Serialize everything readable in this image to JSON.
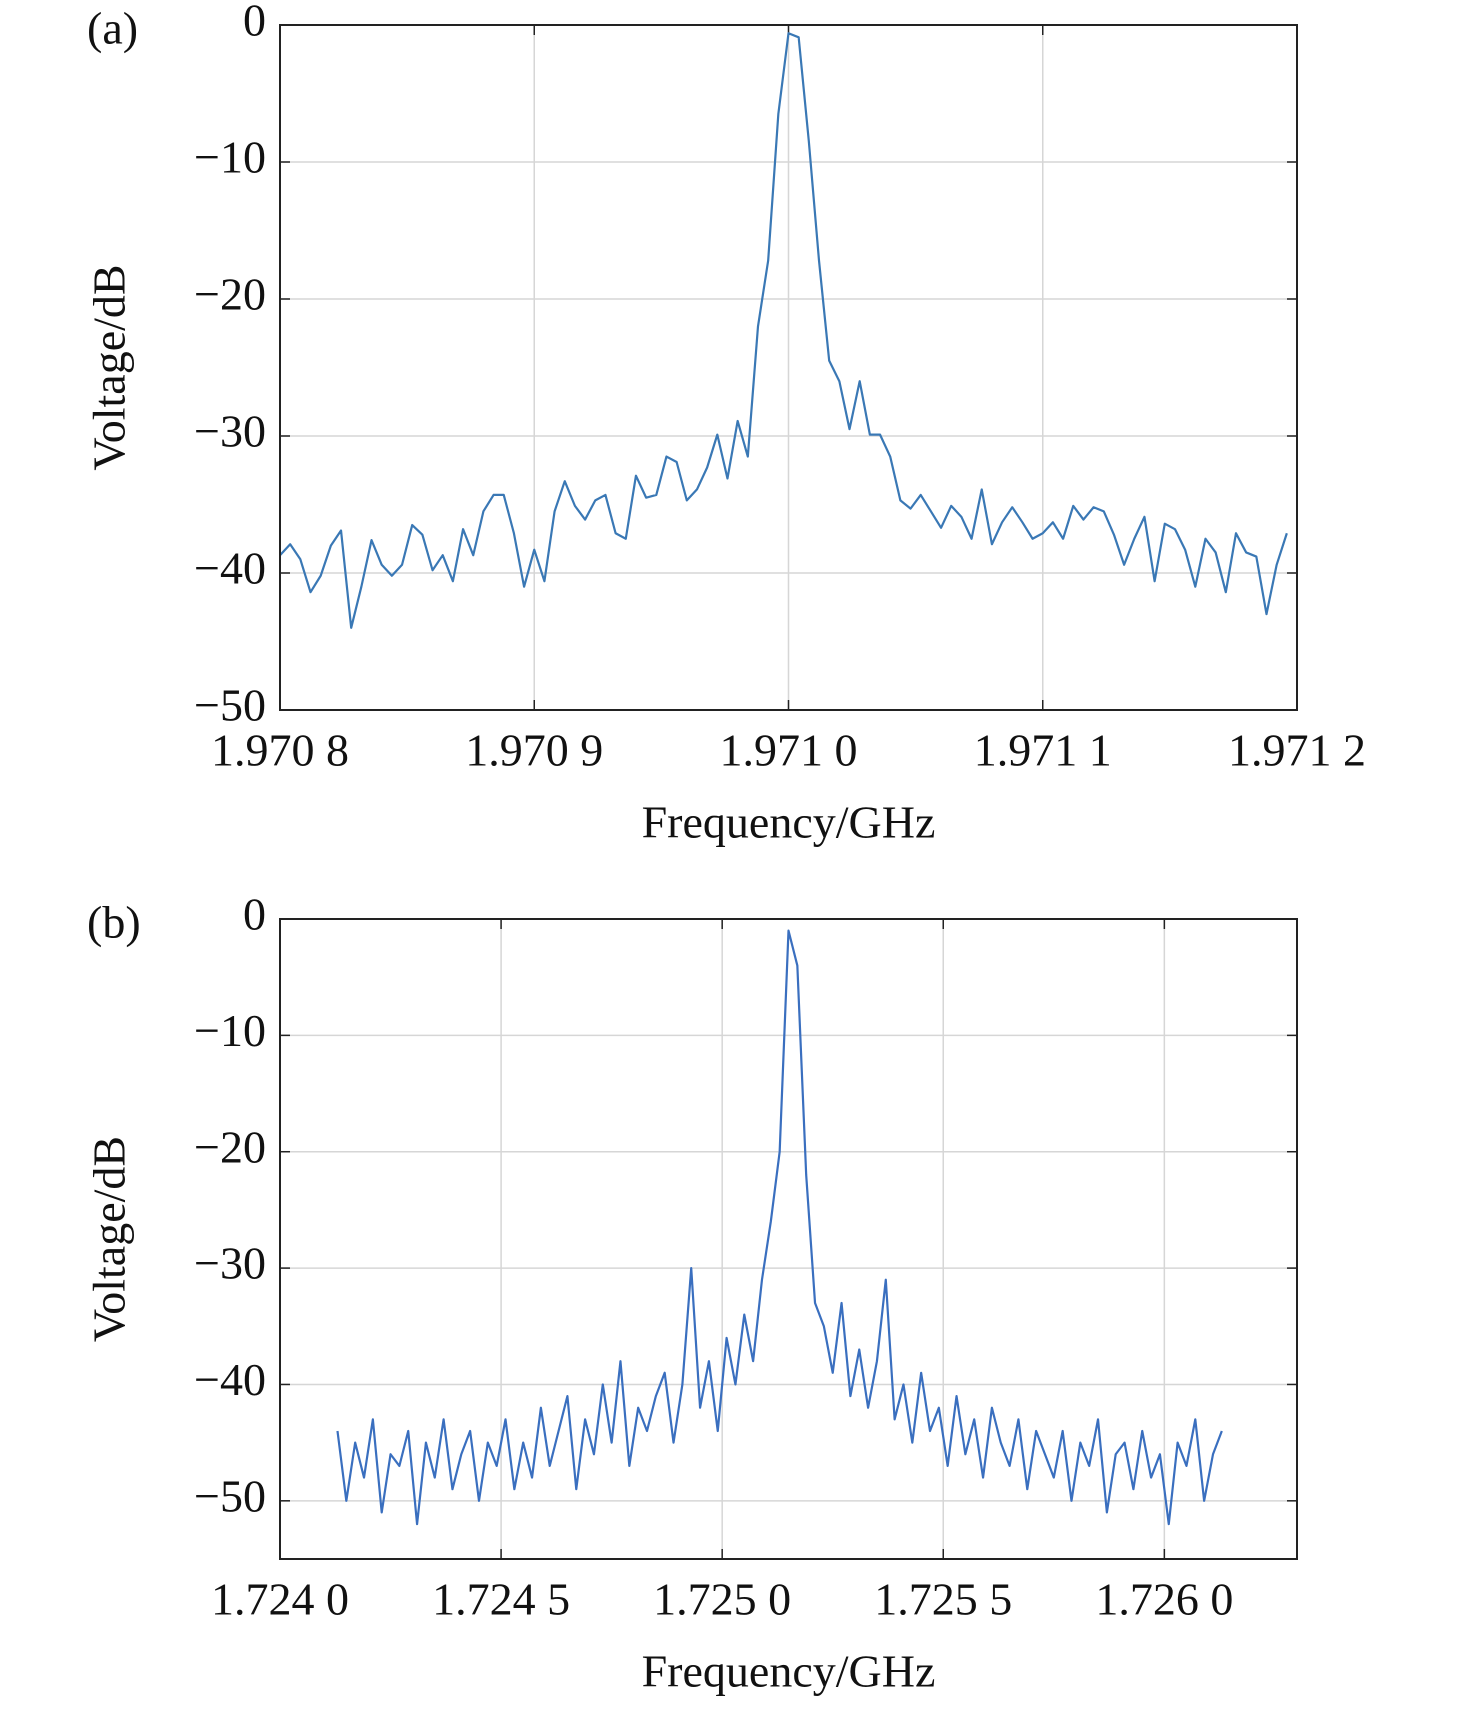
{
  "chart_data": [
    {
      "type": "line",
      "label": "(a)",
      "xlabel": "Frequency/GHz",
      "ylabel": "Voltage/dB",
      "color": "#3a78b5",
      "grid": true,
      "xlim": [
        1.9708,
        1.9712
      ],
      "ylim": [
        -50,
        0
      ],
      "xticks": [
        {
          "value": 1.9708,
          "label": "1.970 8"
        },
        {
          "value": 1.9709,
          "label": "1.970 9"
        },
        {
          "value": 1.971,
          "label": "1.971 0"
        },
        {
          "value": 1.9711,
          "label": "1.971 1"
        },
        {
          "value": 1.9712,
          "label": "1.971 2"
        }
      ],
      "yticks": [
        0,
        {
          "value": -10,
          "label": "−10"
        },
        {
          "value": -20,
          "label": "−20"
        },
        {
          "value": -30,
          "label": "−30"
        },
        {
          "value": -40,
          "label": "−40"
        },
        {
          "value": -50,
          "label": "−50"
        }
      ],
      "x": [
        1.9708,
        1.970804,
        1.970808,
        1.970812,
        1.970816,
        1.97082,
        1.970824,
        1.970828,
        1.970832,
        1.970836,
        1.97084,
        1.970844,
        1.970848,
        1.970852,
        1.970856,
        1.97086,
        1.970864,
        1.970868,
        1.970872,
        1.970876,
        1.97088,
        1.970884,
        1.970888,
        1.970892,
        1.970896,
        1.9709,
        1.970904,
        1.970908,
        1.970912,
        1.970916,
        1.97092,
        1.970924,
        1.970928,
        1.970932,
        1.970936,
        1.97094,
        1.970944,
        1.970948,
        1.970952,
        1.970956,
        1.97096,
        1.970964,
        1.970968,
        1.970972,
        1.970976,
        1.97098,
        1.970984,
        1.970988,
        1.970992,
        1.970996,
        1.971,
        1.971004,
        1.971008,
        1.971012,
        1.971016,
        1.97102,
        1.971024,
        1.971028,
        1.971032,
        1.971036,
        1.97104,
        1.971044,
        1.971048,
        1.971052,
        1.971056,
        1.97106,
        1.971064,
        1.971068,
        1.971072,
        1.971076,
        1.97108,
        1.971084,
        1.971088,
        1.971092,
        1.971096,
        1.9711,
        1.971104,
        1.971108,
        1.971112,
        1.971116,
        1.97112,
        1.971124,
        1.971128,
        1.971132,
        1.971136,
        1.97114,
        1.971144,
        1.971148,
        1.971152,
        1.971156,
        1.97116,
        1.971164,
        1.971168,
        1.971172,
        1.971176,
        1.97118,
        1.971184,
        1.971188,
        1.971192,
        1.971196
      ],
      "values": [
        -38.7,
        -37.9,
        -39.0,
        -41.4,
        -40.2,
        -38.0,
        -36.9,
        -44.0,
        -41.0,
        -37.6,
        -39.4,
        -40.2,
        -39.4,
        -36.5,
        -37.2,
        -39.8,
        -38.7,
        -40.6,
        -36.8,
        -38.7,
        -35.5,
        -34.3,
        -34.3,
        -37.1,
        -41.0,
        -38.3,
        -40.6,
        -35.5,
        -33.3,
        -35.1,
        -36.1,
        -34.7,
        -34.3,
        -37.1,
        -37.5,
        -32.9,
        -34.5,
        -34.3,
        -31.5,
        -31.9,
        -34.7,
        -33.9,
        -32.3,
        -29.9,
        -33.1,
        -28.9,
        -31.5,
        -22.0,
        -17.2,
        -6.5,
        -0.6,
        -0.9,
        -8.5,
        -17.2,
        -24.5,
        -26.0,
        -29.5,
        -26.0,
        -29.9,
        -29.9,
        -31.5,
        -34.7,
        -35.3,
        -34.3,
        -35.5,
        -36.7,
        -35.1,
        -35.9,
        -37.5,
        -33.9,
        -37.9,
        -36.3,
        -35.2,
        -36.3,
        -37.5,
        -37.1,
        -36.3,
        -37.5,
        -35.1,
        -36.1,
        -35.2,
        -35.5,
        -37.2,
        -39.4,
        -37.5,
        -35.9,
        -40.6,
        -36.4,
        -36.8,
        -38.3,
        -41.0,
        -37.5,
        -38.5,
        -41.4,
        -37.1,
        -38.5,
        -38.8,
        -43.0,
        -39.4,
        -37.1
      ]
    },
    {
      "type": "line",
      "label": "(b)",
      "xlabel": "Frequency/GHz",
      "ylabel": "Voltage/dB",
      "color": "#3a6fbf",
      "grid": true,
      "xlim": [
        1.724,
        1.7263
      ],
      "ylim": [
        -55,
        0
      ],
      "xticks": [
        {
          "value": 1.724,
          "label": "1.724 0"
        },
        {
          "value": 1.7245,
          "label": "1.724 5"
        },
        {
          "value": 1.725,
          "label": "1.725 0"
        },
        {
          "value": 1.7255,
          "label": "1.725 5"
        },
        {
          "value": 1.726,
          "label": "1.726 0"
        }
      ],
      "yticks": [
        0,
        {
          "value": -10,
          "label": "−10"
        },
        {
          "value": -20,
          "label": "−20"
        },
        {
          "value": -30,
          "label": "−30"
        },
        {
          "value": -40,
          "label": "−40"
        },
        {
          "value": -50,
          "label": "−50"
        }
      ],
      "x": [
        1.72413,
        1.72415,
        1.72417,
        1.72419,
        1.72421,
        1.72423,
        1.72425,
        1.72427,
        1.72429,
        1.72431,
        1.72433,
        1.72435,
        1.72437,
        1.72439,
        1.72441,
        1.72443,
        1.72445,
        1.72447,
        1.72449,
        1.72451,
        1.72453,
        1.72455,
        1.72457,
        1.72459,
        1.72461,
        1.72463,
        1.72465,
        1.72467,
        1.72469,
        1.72471,
        1.72473,
        1.72475,
        1.72477,
        1.72479,
        1.72481,
        1.72483,
        1.72485,
        1.72487,
        1.72489,
        1.72491,
        1.72493,
        1.72495,
        1.72497,
        1.72499,
        1.72501,
        1.72503,
        1.72505,
        1.72507,
        1.72509,
        1.72511,
        1.72513,
        1.72515,
        1.72517,
        1.72519,
        1.72521,
        1.72523,
        1.72525,
        1.72527,
        1.72529,
        1.72531,
        1.72533,
        1.72535,
        1.72537,
        1.72539,
        1.72541,
        1.72543,
        1.72545,
        1.72547,
        1.72549,
        1.72551,
        1.72553,
        1.72555,
        1.72557,
        1.72559,
        1.72561,
        1.72563,
        1.72565,
        1.72567,
        1.72569,
        1.72571,
        1.72573,
        1.72575,
        1.72577,
        1.72579,
        1.72581,
        1.72583,
        1.72585,
        1.72587,
        1.72589,
        1.72591,
        1.72593,
        1.72595,
        1.72597,
        1.72599,
        1.72601,
        1.72603,
        1.72605,
        1.72607,
        1.72609,
        1.72611,
        1.72613
      ],
      "values": [
        -44,
        -50,
        -45,
        -48,
        -43,
        -51,
        -46,
        -47,
        -44,
        -52,
        -45,
        -48,
        -43,
        -49,
        -46,
        -44,
        -50,
        -45,
        -47,
        -43,
        -49,
        -45,
        -48,
        -42,
        -47,
        -44,
        -41,
        -49,
        -43,
        -46,
        -40,
        -45,
        -38,
        -47,
        -42,
        -44,
        -41,
        -39,
        -45,
        -40,
        -30,
        -42,
        -38,
        -44,
        -36,
        -40,
        -34,
        -38,
        -31,
        -26,
        -20,
        -1,
        -4,
        -22,
        -33,
        -35,
        -39,
        -33,
        -41,
        -37,
        -42,
        -38,
        -31,
        -43,
        -40,
        -45,
        -39,
        -44,
        -42,
        -47,
        -41,
        -46,
        -43,
        -48,
        -42,
        -45,
        -47,
        -43,
        -49,
        -44,
        -46,
        -48,
        -44,
        -50,
        -45,
        -47,
        -43,
        -51,
        -46,
        -45,
        -49,
        -44,
        -48,
        -46,
        -52,
        -45,
        -47,
        -43,
        -50,
        -46,
        -44
      ]
    }
  ]
}
